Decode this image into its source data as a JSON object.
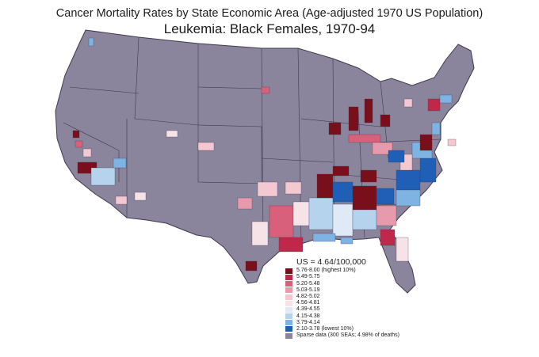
{
  "header": {
    "title": "Cancer Mortality Rates by State Economic Area (Age-adjusted 1970 US Population)",
    "subtitle": "Leukemia:  Black Females, 1970-94"
  },
  "legend": {
    "us_rate": "US = 4.64/100,000",
    "bins": [
      {
        "label": "5.76-8.00 (highest 10%)",
        "color": "#7a0f1c"
      },
      {
        "label": "5.49-5.75",
        "color": "#c0284a"
      },
      {
        "label": "5.20-5.48",
        "color": "#d9607a"
      },
      {
        "label": "5.03-5.19",
        "color": "#e79aab"
      },
      {
        "label": "4.82-5.02",
        "color": "#f3c8d1"
      },
      {
        "label": "4.56-4.81",
        "color": "#f6e3e8"
      },
      {
        "label": "4.39-4.55",
        "color": "#dfeaf6"
      },
      {
        "label": "4.15-4.38",
        "color": "#b6d3ee"
      },
      {
        "label": "3.79-4.14",
        "color": "#7fb3e3"
      },
      {
        "label": "2.10-3.78 (lowest 10%)",
        "color": "#1f5fb5"
      },
      {
        "label": "Sparse data (300 SEAs; 4.98% of deaths)",
        "color": "#8a849c"
      }
    ]
  },
  "map": {
    "base_color": "#8a849c",
    "border_color": "#3e3b4d"
  }
}
